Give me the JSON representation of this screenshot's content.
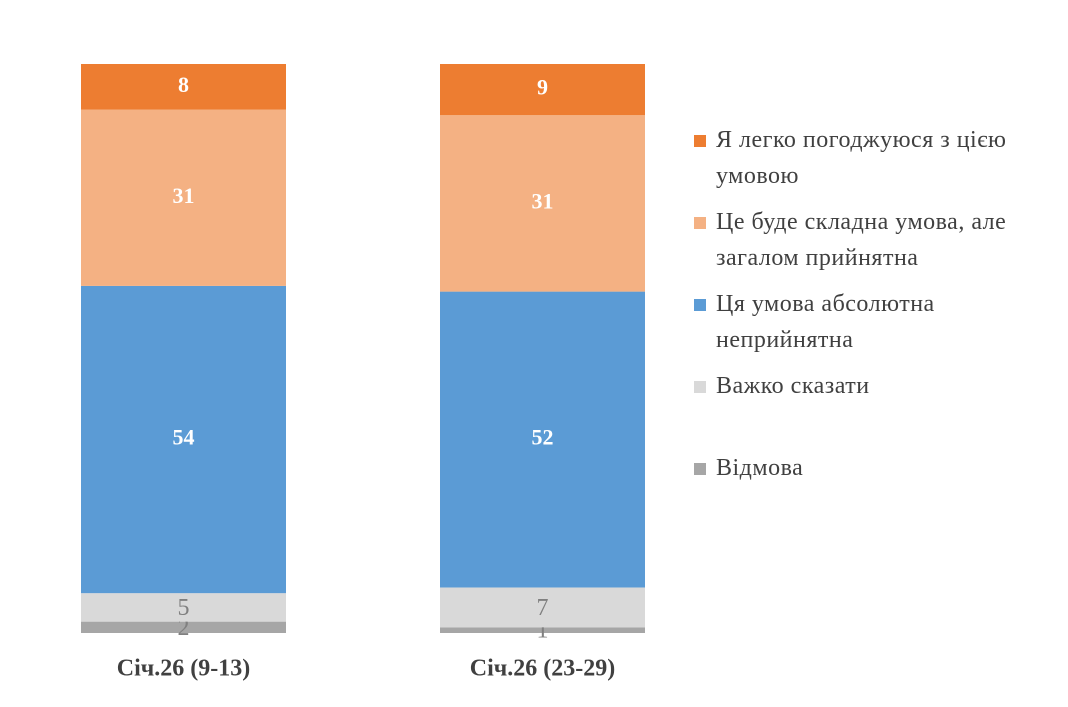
{
  "chart_data": {
    "type": "stacked_bar",
    "categories": [
      "Січ.26 (9-13)",
      "Січ.26 (23-29)"
    ],
    "series": [
      {
        "name": "Я легко погоджуюся з цією умовою",
        "color": "#ed7d31",
        "values": [
          8,
          9
        ]
      },
      {
        "name": "Це буде складна умова, але загалом прийнятна",
        "color": "#f4b183",
        "values": [
          31,
          31
        ]
      },
      {
        "name": "Ця умова абсолютна неприйнятна",
        "color": "#5b9bd5",
        "values": [
          54,
          52
        ]
      },
      {
        "name": "Важко сказати",
        "color": "#d9d9d9",
        "values": [
          5,
          7
        ]
      },
      {
        "name": "Відмова",
        "color": "#a6a6a6",
        "values": [
          2,
          1
        ]
      }
    ]
  }
}
